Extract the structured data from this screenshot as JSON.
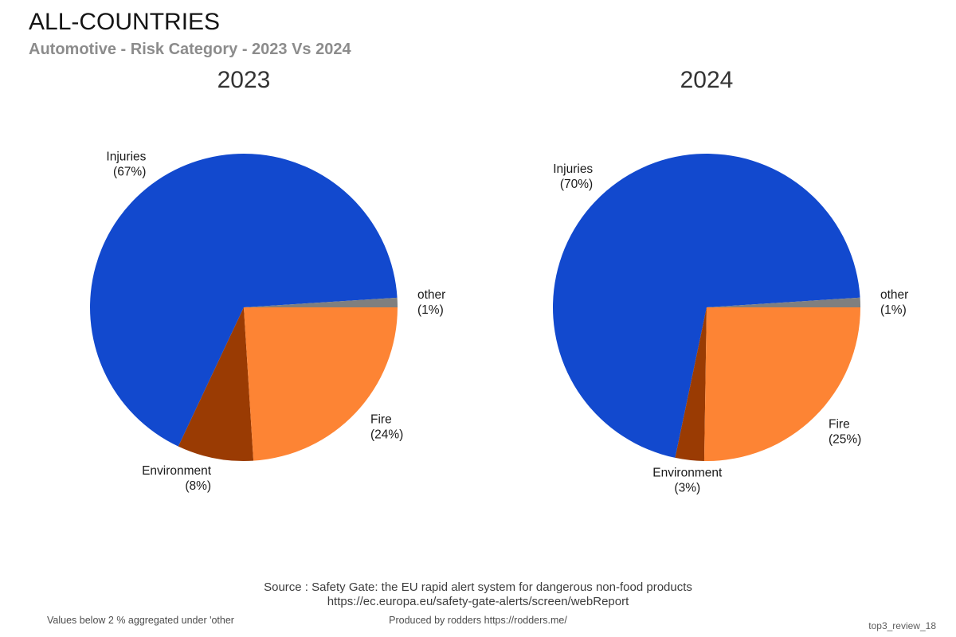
{
  "header": {
    "title": "ALL-COUNTRIES",
    "subtitle": "Automotive - Risk Category - 2023 Vs 2024"
  },
  "chart_data": [
    {
      "type": "pie",
      "title": "2023",
      "start_angle_deg": 0,
      "direction": "counterclockwise",
      "slices": [
        {
          "label": "Injuries",
          "value": 67,
          "pct_label": "(67%)",
          "color_key": "injuries"
        },
        {
          "label": "Environment",
          "value": 8,
          "pct_label": "(8%)",
          "color_key": "environment"
        },
        {
          "label": "Fire",
          "value": 24,
          "pct_label": "(24%)",
          "color_key": "fire"
        },
        {
          "label": "other",
          "value": 1,
          "pct_label": "(1%)",
          "color_key": "other"
        }
      ]
    },
    {
      "type": "pie",
      "title": "2024",
      "start_angle_deg": 0,
      "direction": "counterclockwise",
      "slices": [
        {
          "label": "Injuries",
          "value": 70,
          "pct_label": "(70%)",
          "color_key": "injuries"
        },
        {
          "label": "Environment",
          "value": 3,
          "pct_label": "(3%)",
          "color_key": "environment"
        },
        {
          "label": "Fire",
          "value": 25,
          "pct_label": "(25%)",
          "color_key": "fire"
        },
        {
          "label": "other",
          "value": 1,
          "pct_label": "(1%)",
          "color_key": "other"
        }
      ]
    }
  ],
  "colors": {
    "injuries": "#1249ce",
    "fire": "#fd8434",
    "environment": "#9a3b03",
    "other": "#7f7f7f"
  },
  "footer": {
    "source_line1": "Source : Safety Gate: the EU rapid alert system for dangerous non-food products",
    "source_line2": "https://ec.europa.eu/safety-gate-alerts/screen/webReport",
    "note": "Values below 2 % aggregated under 'other",
    "credit": "Produced by rodders https://rodders.me/",
    "watermark": "top3_review_18"
  }
}
